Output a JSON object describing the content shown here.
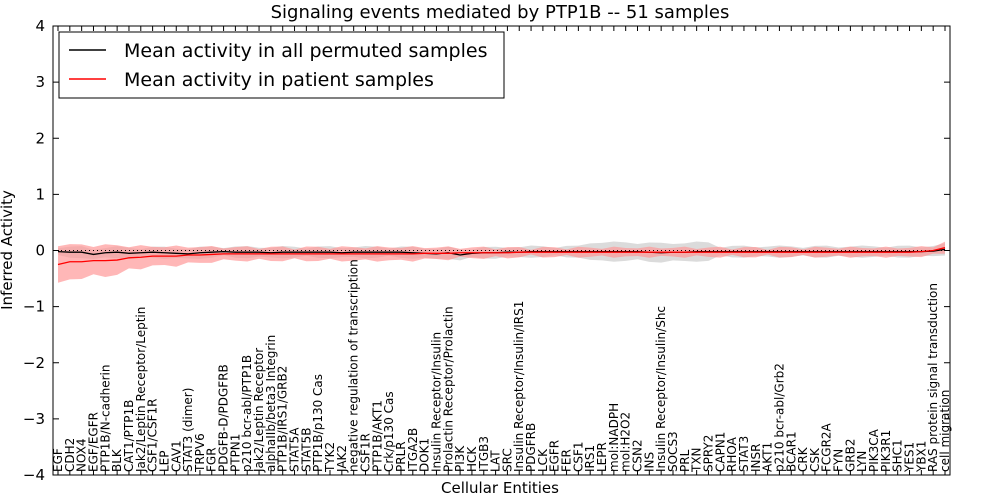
{
  "chart_data": {
    "type": "line",
    "title": "Signaling events mediated by PTP1B -- 51 samples",
    "xlabel": "Cellular Entities",
    "ylabel": "Inferred Activity",
    "ylim": [
      -4,
      4
    ],
    "yticks": [
      -4,
      -3,
      -2,
      -1,
      0,
      1,
      2,
      3,
      4
    ],
    "ytick_labels": [
      "−4",
      "−3",
      "−2",
      "−1",
      "0",
      "1",
      "2",
      "3",
      "4"
    ],
    "legend": {
      "placement": "top-left",
      "entries": [
        "Mean activity in all permuted samples",
        "Mean activity in patient samples"
      ]
    },
    "colors": {
      "permuted": "#000000",
      "patient": "#ff0000",
      "patient_band": "#ff9999",
      "permuted_band": "#cccccc"
    },
    "categories": [
      "EGF",
      "CDH2",
      "NOX4",
      "EGF/EGFR",
      "PTP1B/N-cadherin",
      "BLK",
      "CAT1/PTP1B",
      "Jak2/Leptin Receptor/Leptin",
      "CSF1/CSF1R",
      "LEP",
      "CAV1",
      "STAT3 (dimer)",
      "TRPV6",
      "FGR",
      "PDGFB-D/PDGFRB",
      "PTPN1",
      "p210 bcr-abl/PTP1B",
      "Jak2/Leptin Receptor",
      "alphaIIb/beta3 Integrin",
      "PTP1B/IRS1/GRB2",
      "STAT5A",
      "STAT5B",
      "PTP1B/p130 Cas",
      "TYK2",
      "JAK2",
      "negative regulation of transcription",
      "CSF1R",
      "PTP1B/AKT1",
      "Crk/p130 Cas",
      "PRLR",
      "ITGA2B",
      "DOK1",
      "Insulin Receptor/Insulin",
      "Prolactin Receptor/Prolactin",
      "PI3K",
      "HCK",
      "ITGB3",
      "LAT",
      "SRC",
      "Insulin Receptor/Insulin/IRS1",
      "PDGFRB",
      "LCK",
      "EGFR",
      "FER",
      "CSF1",
      "IRS1",
      "LEPR",
      "mol:NADPH",
      "mol:H2O2",
      "CSN2",
      "INS",
      "Insulin Receptor/Insulin/Shc",
      "SOCS3",
      "PRL",
      "TXN",
      "SPRY2",
      "CAPN1",
      "RHOA",
      "STAT3",
      "INSR",
      "AKT1",
      "p210 bcr-abl/Grb2",
      "BCAR1",
      "CRK",
      "CSK",
      "FCGR2A",
      "FYN",
      "GRB2",
      "LYN",
      "PIK3CA",
      "PIK3R1",
      "SHC1",
      "YES1",
      "YBX1",
      "RAS protein signal transduction",
      "cell migration"
    ],
    "series": [
      {
        "name": "Mean activity in all permuted samples",
        "values": [
          -0.02,
          -0.03,
          -0.03,
          -0.07,
          -0.04,
          -0.03,
          -0.05,
          -0.04,
          -0.03,
          -0.04,
          -0.05,
          -0.06,
          -0.04,
          -0.03,
          -0.02,
          -0.03,
          -0.03,
          -0.03,
          -0.04,
          -0.03,
          -0.03,
          -0.03,
          -0.03,
          -0.03,
          -0.04,
          -0.03,
          -0.03,
          -0.03,
          -0.03,
          -0.03,
          -0.04,
          -0.05,
          -0.06,
          -0.04,
          -0.08,
          -0.05,
          -0.04,
          -0.04,
          -0.03,
          -0.03,
          -0.02,
          -0.02,
          -0.02,
          -0.02,
          -0.02,
          -0.02,
          -0.02,
          -0.02,
          -0.02,
          -0.02,
          -0.03,
          -0.04,
          -0.03,
          -0.03,
          -0.02,
          -0.02,
          -0.02,
          -0.02,
          -0.02,
          -0.02,
          -0.02,
          -0.02,
          -0.02,
          -0.02,
          -0.02,
          -0.02,
          -0.02,
          -0.02,
          -0.02,
          -0.02,
          -0.02,
          -0.02,
          -0.02,
          -0.02,
          -0.01,
          0.02
        ]
      },
      {
        "name": "Mean activity in patient samples",
        "values": [
          -0.25,
          -0.2,
          -0.2,
          -0.18,
          -0.18,
          -0.17,
          -0.13,
          -0.12,
          -0.1,
          -0.1,
          -0.1,
          -0.08,
          -0.08,
          -0.07,
          -0.06,
          -0.06,
          -0.06,
          -0.06,
          -0.06,
          -0.06,
          -0.06,
          -0.06,
          -0.06,
          -0.06,
          -0.06,
          -0.06,
          -0.06,
          -0.06,
          -0.06,
          -0.06,
          -0.06,
          -0.05,
          -0.05,
          -0.05,
          -0.04,
          -0.04,
          -0.04,
          -0.04,
          -0.04,
          -0.03,
          -0.03,
          -0.03,
          -0.03,
          -0.03,
          -0.03,
          -0.03,
          -0.03,
          -0.03,
          -0.03,
          -0.03,
          -0.03,
          -0.03,
          -0.03,
          -0.03,
          -0.03,
          -0.03,
          -0.03,
          -0.03,
          -0.03,
          -0.03,
          -0.03,
          -0.03,
          -0.03,
          -0.03,
          -0.03,
          -0.03,
          -0.03,
          -0.03,
          -0.03,
          -0.03,
          -0.03,
          -0.03,
          -0.03,
          -0.02,
          0.0,
          0.05
        ]
      }
    ]
  }
}
